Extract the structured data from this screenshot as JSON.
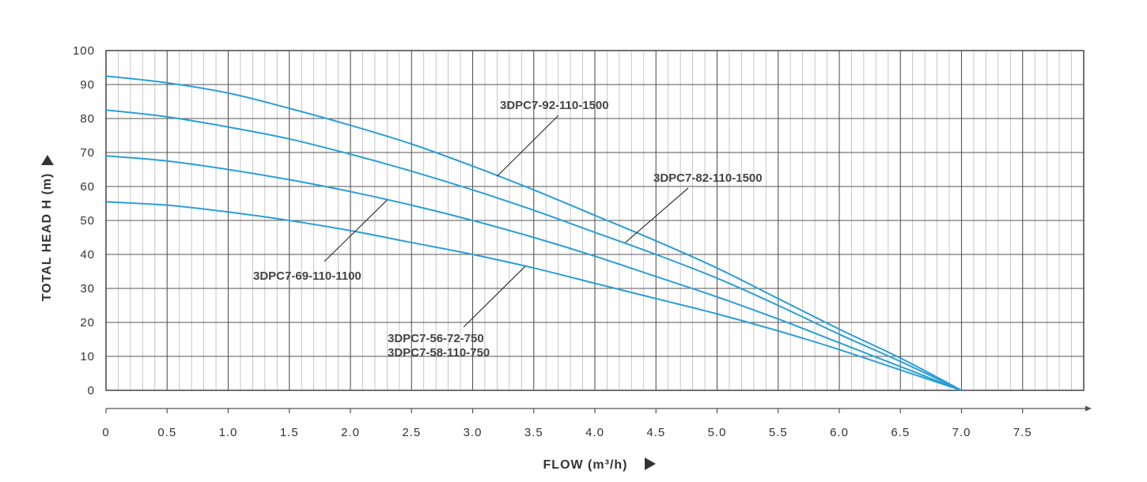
{
  "chart_data": {
    "type": "line",
    "xlabel": "FLOW (m³/h)",
    "ylabel": "TOTAL HEAD H (m)",
    "xlim": [
      0,
      8.0
    ],
    "ylim": [
      0,
      100
    ],
    "x_ticks": [
      "0",
      "0.5",
      "1.0",
      "1.5",
      "2.0",
      "2.5",
      "3.0",
      "3.5",
      "4.0",
      "4.5",
      "5.0",
      "5.5",
      "6.0",
      "6.5",
      "7.0",
      "7.5"
    ],
    "y_ticks": [
      "0",
      "10",
      "20",
      "30",
      "40",
      "50",
      "60",
      "70",
      "80",
      "90",
      "100"
    ],
    "grid": true,
    "line_color": "#2a9fd6",
    "series": [
      {
        "name": "3DPC7-92-110-1500",
        "x": [
          0,
          0.5,
          1.0,
          1.5,
          2.0,
          2.5,
          3.0,
          3.5,
          4.0,
          4.5,
          5.0,
          5.5,
          6.0,
          6.5,
          7.0
        ],
        "y": [
          92.5,
          90.5,
          87.5,
          83,
          78,
          72.5,
          66,
          59,
          51.5,
          44,
          36,
          27,
          18,
          9.5,
          0
        ]
      },
      {
        "name": "3DPC7-82-110-1500",
        "x": [
          0,
          0.5,
          1.0,
          1.5,
          2.0,
          2.5,
          3.0,
          3.5,
          4.0,
          4.5,
          5.0,
          5.5,
          6.0,
          6.5,
          7.0
        ],
        "y": [
          82.5,
          80.5,
          77.5,
          74,
          69.5,
          64.5,
          59,
          53,
          46.5,
          40,
          33,
          25,
          16.5,
          8.5,
          0
        ]
      },
      {
        "name": "3DPC7-69-110-1100",
        "x": [
          0,
          0.5,
          1.0,
          1.5,
          2.0,
          2.5,
          3.0,
          3.5,
          4.0,
          4.5,
          5.0,
          5.5,
          6.0,
          6.5,
          7.0
        ],
        "y": [
          69,
          67.5,
          65,
          62,
          58.5,
          54.5,
          50,
          45,
          39.5,
          33.5,
          27.5,
          21,
          14,
          7,
          0
        ]
      },
      {
        "name": "3DPC7-56-72-750",
        "name2": "3DPC7-58-110-750",
        "x": [
          0,
          0.5,
          1.0,
          1.5,
          2.0,
          2.5,
          3.0,
          3.5,
          4.0,
          4.5,
          5.0,
          5.5,
          6.0,
          6.5,
          7.0
        ],
        "y": [
          55.5,
          54.5,
          52.5,
          50,
          47,
          43.5,
          40,
          36,
          31.5,
          27,
          22.5,
          17.5,
          12,
          6,
          0
        ]
      }
    ]
  }
}
